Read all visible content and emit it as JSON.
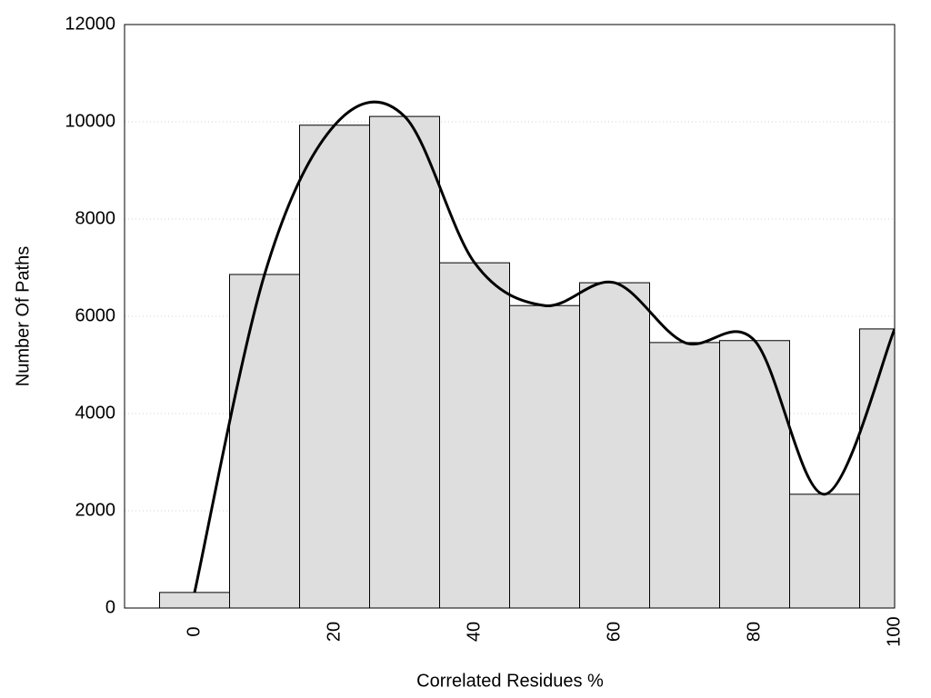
{
  "chart_data": {
    "type": "histogram",
    "xlabel": "Correlated Residues %",
    "ylabel": "Number Of Paths",
    "bins": [
      -5,
      5,
      15,
      25,
      35,
      45,
      55,
      65,
      75,
      85,
      95,
      105
    ],
    "counts": [
      320,
      6860,
      9930,
      10110,
      7100,
      6220,
      6690,
      5460,
      5500,
      2340,
      5740
    ],
    "color": "#dedede",
    "edge_color": "#000000",
    "line": {
      "x": [
        0,
        10,
        20,
        30,
        40,
        50,
        60,
        70,
        80,
        90,
        100
      ],
      "values": [
        320,
        6860,
        9930,
        10110,
        7100,
        6220,
        6690,
        5460,
        5500,
        2340,
        5740
      ],
      "color": "#000000"
    },
    "xlim": [
      -10,
      100
    ],
    "xticks": [
      0,
      20,
      40,
      60,
      80,
      100
    ],
    "ylim": [
      0,
      12000
    ],
    "yticks": [
      0,
      2000,
      4000,
      6000,
      8000,
      10000,
      12000
    ],
    "grid": true
  }
}
